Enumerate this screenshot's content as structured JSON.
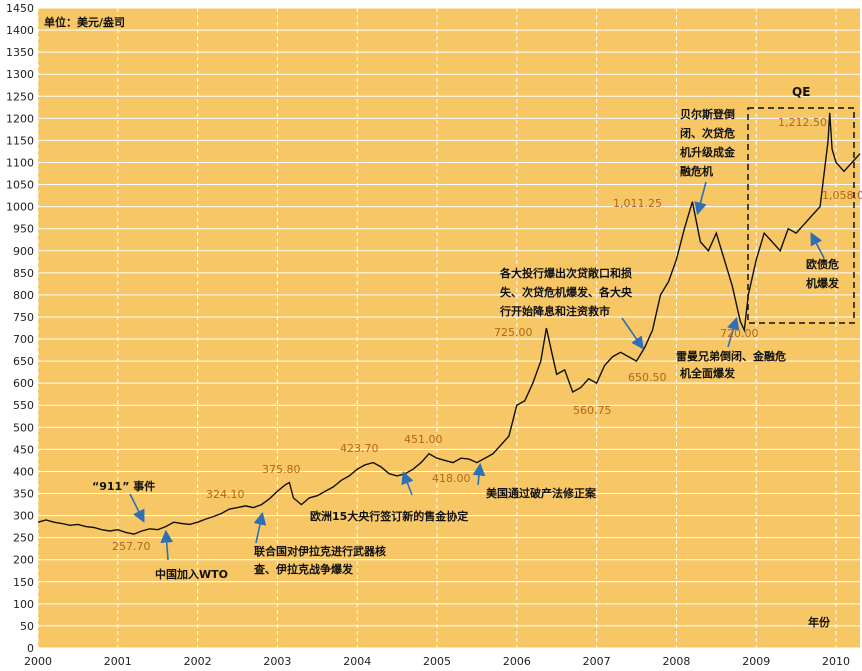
{
  "chart_data": {
    "type": "line",
    "unit_label": "单位：美元/盎司",
    "xlabel": "年份",
    "x_ticks": [
      "2000",
      "2001",
      "2002",
      "2003",
      "2004",
      "2005",
      "2006",
      "2007",
      "2008",
      "2009",
      "2010"
    ],
    "y_ticks": [
      0,
      50,
      100,
      150,
      200,
      250,
      300,
      350,
      400,
      450,
      500,
      550,
      600,
      650,
      700,
      750,
      800,
      850,
      900,
      950,
      1000,
      1050,
      1100,
      1150,
      1200,
      1250,
      1300,
      1350,
      1400,
      1450
    ],
    "xlim": [
      2000,
      2010.3
    ],
    "ylim": [
      0,
      1450
    ],
    "grid": true,
    "colors": {
      "background": "#f7c766",
      "grid": "#ffffff",
      "line": "#111111",
      "value_label": "#b5651d",
      "arrow": "#2e6fb5"
    },
    "series": [
      {
        "x": [
          2000.0,
          2000.1,
          2000.2,
          2000.3,
          2000.4,
          2000.5,
          2000.6,
          2000.7,
          2000.8,
          2000.9,
          2001.0,
          2001.1,
          2001.2,
          2001.3,
          2001.4,
          2001.5,
          2001.6,
          2001.7,
          2001.8,
          2001.9,
          2002.0,
          2002.1,
          2002.2,
          2002.3,
          2002.4,
          2002.5,
          2002.6,
          2002.7,
          2002.8,
          2002.9,
          2003.0,
          2003.1,
          2003.15,
          2003.2,
          2003.3,
          2003.4,
          2003.5,
          2003.6,
          2003.7,
          2003.8,
          2003.9,
          2004.0,
          2004.1,
          2004.2,
          2004.3,
          2004.4,
          2004.5,
          2004.6,
          2004.7,
          2004.8,
          2004.9,
          2005.0,
          2005.1,
          2005.2,
          2005.3,
          2005.4,
          2005.5,
          2005.6,
          2005.7,
          2005.8,
          2005.9,
          2006.0,
          2006.1,
          2006.2,
          2006.3,
          2006.37,
          2006.45,
          2006.5,
          2006.6,
          2006.7,
          2006.8,
          2006.9,
          2007.0,
          2007.1,
          2007.2,
          2007.3,
          2007.4,
          2007.5,
          2007.6,
          2007.7,
          2007.8,
          2007.9,
          2008.0,
          2008.1,
          2008.2,
          2008.3,
          2008.4,
          2008.5,
          2008.6,
          2008.7,
          2008.8,
          2008.85,
          2008.9,
          2009.0,
          2009.1,
          2009.2,
          2009.3,
          2009.4,
          2009.5,
          2009.6,
          2009.7,
          2009.8,
          2009.9,
          2009.92,
          2009.95,
          2010.0,
          2010.1,
          2010.2,
          2010.3
        ],
        "y": [
          285,
          290,
          285,
          282,
          278,
          280,
          275,
          273,
          268,
          265,
          268,
          262,
          258,
          265,
          270,
          268,
          275,
          285,
          282,
          280,
          285,
          292,
          298,
          305,
          315,
          318,
          322,
          318,
          325,
          338,
          355,
          370,
          375,
          340,
          325,
          340,
          345,
          355,
          365,
          380,
          390,
          405,
          415,
          420,
          410,
          395,
          390,
          395,
          405,
          420,
          440,
          430,
          425,
          420,
          430,
          428,
          420,
          430,
          440,
          460,
          480,
          550,
          560,
          600,
          650,
          725,
          660,
          620,
          630,
          580,
          590,
          610,
          600,
          640,
          660,
          670,
          660,
          650,
          680,
          720,
          800,
          830,
          880,
          950,
          1011.25,
          920,
          900,
          940,
          880,
          820,
          740,
          720,
          800,
          880,
          940,
          920,
          900,
          950,
          940,
          960,
          980,
          1000,
          1150,
          1212.5,
          1130,
          1100,
          1080,
          1100,
          1120
        ]
      }
    ],
    "annotations": [
      {
        "label": "257.70",
        "x": 2001.3,
        "y": 257.7
      },
      {
        "label": "324.10",
        "x": 2002.4,
        "y": 324.1
      },
      {
        "label": "375.80",
        "x": 2003.15,
        "y": 375.8
      },
      {
        "label": "423.70",
        "x": 2004.3,
        "y": 423.7
      },
      {
        "label": "451.00",
        "x": 2004.95,
        "y": 451
      },
      {
        "label": "418.00",
        "x": 2005.35,
        "y": 418
      },
      {
        "label": "725.00",
        "x": 2006.35,
        "y": 725
      },
      {
        "label": "560.75",
        "x": 2006.85,
        "y": 560.75
      },
      {
        "label": "650.50",
        "x": 2007.45,
        "y": 650.5
      },
      {
        "label": "1,011.25",
        "x": 2008.1,
        "y": 1011.25
      },
      {
        "label": "720.00",
        "x": 2008.9,
        "y": 720
      },
      {
        "label": "1,212.50",
        "x": 2009.9,
        "y": 1212.5
      },
      {
        "label": "1,058.00",
        "x": 2010.2,
        "y": 1058
      }
    ],
    "events": [
      {
        "text": "“911” 事件"
      },
      {
        "text": "中国加入WTO"
      },
      {
        "text": "联合国对伊拉克进行武器核"
      },
      {
        "text": "查、伊拉克战争爆发"
      },
      {
        "text": "欧洲15大央行签订新的售金协定"
      },
      {
        "text": "美国通过破产法修正案"
      },
      {
        "text": "各大投行爆出次贷敞口和损"
      },
      {
        "text": "失、次贷危机爆发、各大央"
      },
      {
        "text": "行开始降息和注资救市"
      },
      {
        "text": "贝尔斯登倒"
      },
      {
        "text": "闭、次贷危"
      },
      {
        "text": "机升级成金"
      },
      {
        "text": "融危机"
      },
      {
        "text": "雷曼兄弟倒闭、金融危"
      },
      {
        "text": "机全面爆发"
      },
      {
        "text": "欧债危"
      },
      {
        "text": "机爆发"
      }
    ],
    "qe_label": "QE"
  }
}
